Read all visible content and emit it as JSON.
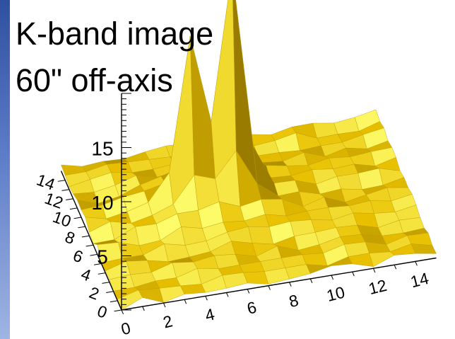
{
  "title_lines": [
    "K-band image",
    "60\" off-axis"
  ],
  "chart_data": {
    "type": "surface",
    "title": "K-band image 60\" off-axis",
    "x_ticks": [
      "0",
      "2",
      "4",
      "6",
      "8",
      "10",
      "12",
      "14"
    ],
    "y_ticks": [
      "0",
      "2",
      "4",
      "6",
      "8",
      "10",
      "12",
      "14"
    ],
    "z_ticks": [
      "5",
      "10",
      "15"
    ],
    "xlim": [
      0,
      15
    ],
    "ylim": [
      0,
      15
    ],
    "zlim": [
      0,
      20
    ],
    "peaks": [
      {
        "x": 5,
        "y": 9,
        "z": 13.5
      },
      {
        "x": 7,
        "y": 9,
        "z": 19
      }
    ],
    "colors": {
      "surface": "#e8c000",
      "highlight": "#ffff70",
      "shadow": "#8a6e00",
      "left_bar": "#3a5aa8"
    }
  }
}
